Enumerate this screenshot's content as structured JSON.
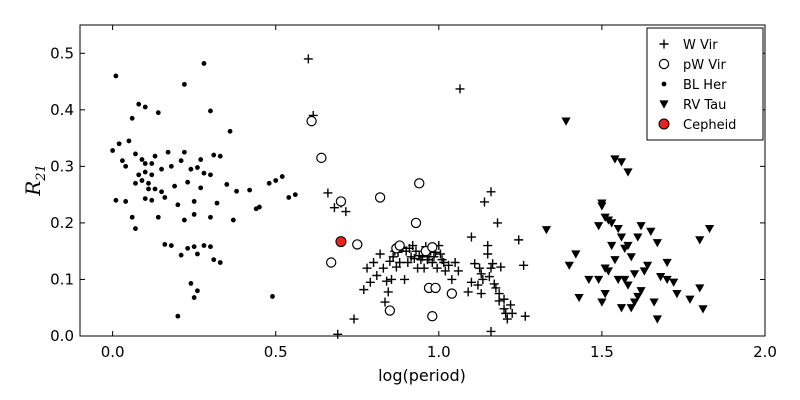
{
  "chart_data": {
    "type": "scatter",
    "xlabel": "log(period)",
    "ylabel": "R",
    "ylabel_sub": "21",
    "xlim": [
      -0.1,
      2.0
    ],
    "ylim": [
      0.0,
      0.55
    ],
    "xticks": [
      0.0,
      0.5,
      1.0,
      1.5,
      2.0
    ],
    "xtick_labels": [
      "0.0",
      "0.5",
      "1.0",
      "1.5",
      "2.0"
    ],
    "yticks": [
      0.0,
      0.1,
      0.2,
      0.3,
      0.4,
      0.5
    ],
    "ytick_labels": [
      "0.0",
      "0.1",
      "0.2",
      "0.3",
      "0.4",
      "0.5"
    ],
    "grid": false,
    "legend_position": "top-right",
    "series": [
      {
        "name": "W Vir",
        "marker": "plus",
        "color": "#000000",
        "points": [
          [
            0.6,
            0.49
          ],
          [
            0.615,
            0.39
          ],
          [
            0.66,
            0.253
          ],
          [
            0.68,
            0.227
          ],
          [
            0.7,
            0.235
          ],
          [
            0.715,
            0.22
          ],
          [
            0.69,
            0.003
          ],
          [
            0.74,
            0.03
          ],
          [
            0.77,
            0.082
          ],
          [
            0.78,
            0.12
          ],
          [
            0.79,
            0.095
          ],
          [
            0.8,
            0.13
          ],
          [
            0.81,
            0.107
          ],
          [
            0.82,
            0.145
          ],
          [
            0.83,
            0.12
          ],
          [
            0.835,
            0.06
          ],
          [
            0.84,
            0.097
          ],
          [
            0.845,
            0.078
          ],
          [
            0.85,
            0.132
          ],
          [
            0.855,
            0.1
          ],
          [
            0.86,
            0.14
          ],
          [
            0.865,
            0.15
          ],
          [
            0.87,
            0.122
          ],
          [
            0.875,
            0.148
          ],
          [
            0.88,
            0.13
          ],
          [
            0.885,
            0.155
          ],
          [
            0.89,
            0.157
          ],
          [
            0.895,
            0.1
          ],
          [
            0.9,
            0.15
          ],
          [
            0.905,
            0.13
          ],
          [
            0.91,
            0.155
          ],
          [
            0.915,
            0.14
          ],
          [
            0.92,
            0.16
          ],
          [
            0.925,
            0.137
          ],
          [
            0.93,
            0.15
          ],
          [
            0.935,
            0.12
          ],
          [
            0.94,
            0.142
          ],
          [
            0.945,
            0.135
          ],
          [
            0.95,
            0.14
          ],
          [
            0.955,
            0.12
          ],
          [
            0.96,
            0.158
          ],
          [
            0.965,
            0.135
          ],
          [
            0.97,
            0.14
          ],
          [
            0.975,
            0.15
          ],
          [
            0.98,
            0.13
          ],
          [
            0.985,
            0.14
          ],
          [
            0.99,
            0.148
          ],
          [
            0.995,
            0.12
          ],
          [
            1.0,
            0.16
          ],
          [
            1.005,
            0.145
          ],
          [
            1.01,
            0.135
          ],
          [
            1.015,
            0.13
          ],
          [
            1.02,
            0.115
          ],
          [
            1.03,
            0.125
          ],
          [
            1.04,
            0.1
          ],
          [
            1.05,
            0.13
          ],
          [
            1.06,
            0.115
          ],
          [
            1.065,
            0.437
          ],
          [
            1.09,
            0.078
          ],
          [
            1.1,
            0.175
          ],
          [
            1.11,
            0.128
          ],
          [
            1.12,
            0.09
          ],
          [
            1.125,
            0.12
          ],
          [
            1.13,
            0.075
          ],
          [
            1.135,
            0.1
          ],
          [
            1.14,
            0.237
          ],
          [
            1.15,
            0.16
          ],
          [
            1.155,
            0.105
          ],
          [
            1.16,
            0.255
          ],
          [
            1.16,
            0.008
          ],
          [
            1.165,
            0.128
          ],
          [
            1.17,
            0.092
          ],
          [
            1.175,
            0.085
          ],
          [
            1.18,
            0.2
          ],
          [
            1.185,
            0.075
          ],
          [
            1.19,
            0.122
          ],
          [
            1.2,
            0.065
          ],
          [
            1.205,
            0.04
          ],
          [
            1.21,
            0.03
          ],
          [
            1.22,
            0.055
          ],
          [
            1.225,
            0.04
          ],
          [
            1.245,
            0.17
          ],
          [
            1.26,
            0.125
          ],
          [
            1.265,
            0.035
          ],
          [
            1.15,
            0.145
          ],
          [
            1.16,
            0.12
          ],
          [
            1.185,
            0.062
          ],
          [
            1.2,
            0.048
          ],
          [
            1.13,
            0.11
          ],
          [
            1.1,
            0.095
          ]
        ]
      },
      {
        "name": "pW Vir",
        "marker": "circle-open",
        "color": "#000000",
        "points": [
          [
            0.61,
            0.38
          ],
          [
            0.64,
            0.315
          ],
          [
            0.7,
            0.238
          ],
          [
            0.82,
            0.245
          ],
          [
            0.94,
            0.27
          ],
          [
            0.67,
            0.13
          ],
          [
            0.75,
            0.162
          ],
          [
            0.87,
            0.155
          ],
          [
            0.88,
            0.16
          ],
          [
            0.93,
            0.2
          ],
          [
            0.96,
            0.15
          ],
          [
            0.98,
            0.157
          ],
          [
            0.97,
            0.085
          ],
          [
            0.99,
            0.085
          ],
          [
            1.04,
            0.075
          ],
          [
            0.85,
            0.045
          ],
          [
            0.98,
            0.035
          ]
        ]
      },
      {
        "name": "BL Her",
        "marker": "dot",
        "color": "#000000",
        "points": [
          [
            0.01,
            0.46
          ],
          [
            0.08,
            0.41
          ],
          [
            0.1,
            0.405
          ],
          [
            0.22,
            0.445
          ],
          [
            0.28,
            0.482
          ],
          [
            0.06,
            0.385
          ],
          [
            0.14,
            0.395
          ],
          [
            0.3,
            0.398
          ],
          [
            0.36,
            0.362
          ],
          [
            0.0,
            0.328
          ],
          [
            0.02,
            0.34
          ],
          [
            0.05,
            0.345
          ],
          [
            0.07,
            0.322
          ],
          [
            0.09,
            0.312
          ],
          [
            0.1,
            0.305
          ],
          [
            0.12,
            0.305
          ],
          [
            0.13,
            0.318
          ],
          [
            0.17,
            0.325
          ],
          [
            0.21,
            0.31
          ],
          [
            0.22,
            0.325
          ],
          [
            0.27,
            0.312
          ],
          [
            0.31,
            0.32
          ],
          [
            0.33,
            0.318
          ],
          [
            0.03,
            0.31
          ],
          [
            0.04,
            0.3
          ],
          [
            0.08,
            0.285
          ],
          [
            0.1,
            0.29
          ],
          [
            0.11,
            0.27
          ],
          [
            0.12,
            0.285
          ],
          [
            0.15,
            0.295
          ],
          [
            0.18,
            0.3
          ],
          [
            0.24,
            0.295
          ],
          [
            0.26,
            0.298
          ],
          [
            0.28,
            0.288
          ],
          [
            0.3,
            0.285
          ],
          [
            0.07,
            0.27
          ],
          [
            0.09,
            0.275
          ],
          [
            0.11,
            0.26
          ],
          [
            0.13,
            0.26
          ],
          [
            0.15,
            0.255
          ],
          [
            0.16,
            0.245
          ],
          [
            0.19,
            0.265
          ],
          [
            0.23,
            0.272
          ],
          [
            0.27,
            0.262
          ],
          [
            0.35,
            0.268
          ],
          [
            0.01,
            0.24
          ],
          [
            0.04,
            0.238
          ],
          [
            0.1,
            0.243
          ],
          [
            0.12,
            0.24
          ],
          [
            0.2,
            0.232
          ],
          [
            0.25,
            0.238
          ],
          [
            0.32,
            0.235
          ],
          [
            0.38,
            0.256
          ],
          [
            0.42,
            0.258
          ],
          [
            0.44,
            0.225
          ],
          [
            0.45,
            0.228
          ],
          [
            0.48,
            0.27
          ],
          [
            0.5,
            0.275
          ],
          [
            0.52,
            0.282
          ],
          [
            0.54,
            0.245
          ],
          [
            0.56,
            0.25
          ],
          [
            0.37,
            0.205
          ],
          [
            0.14,
            0.21
          ],
          [
            0.06,
            0.21
          ],
          [
            0.07,
            0.19
          ],
          [
            0.22,
            0.205
          ],
          [
            0.25,
            0.215
          ],
          [
            0.3,
            0.21
          ],
          [
            0.16,
            0.162
          ],
          [
            0.18,
            0.16
          ],
          [
            0.23,
            0.155
          ],
          [
            0.25,
            0.158
          ],
          [
            0.28,
            0.16
          ],
          [
            0.3,
            0.158
          ],
          [
            0.21,
            0.143
          ],
          [
            0.26,
            0.145
          ],
          [
            0.31,
            0.135
          ],
          [
            0.33,
            0.13
          ],
          [
            0.24,
            0.093
          ],
          [
            0.26,
            0.08
          ],
          [
            0.25,
            0.068
          ],
          [
            0.2,
            0.035
          ],
          [
            0.49,
            0.07
          ]
        ]
      },
      {
        "name": "RV Tau",
        "marker": "triangle-down",
        "color": "#000000",
        "points": [
          [
            1.39,
            0.38
          ],
          [
            1.33,
            0.188
          ],
          [
            1.4,
            0.125
          ],
          [
            1.42,
            0.145
          ],
          [
            1.46,
            0.1
          ],
          [
            1.43,
            0.068
          ],
          [
            1.49,
            0.195
          ],
          [
            1.5,
            0.235
          ],
          [
            1.5,
            0.23
          ],
          [
            1.51,
            0.21
          ],
          [
            1.52,
            0.205
          ],
          [
            1.53,
            0.16
          ],
          [
            1.54,
            0.313
          ],
          [
            1.56,
            0.308
          ],
          [
            1.58,
            0.29
          ],
          [
            1.53,
            0.2
          ],
          [
            1.55,
            0.19
          ],
          [
            1.56,
            0.175
          ],
          [
            1.57,
            0.155
          ],
          [
            1.58,
            0.16
          ],
          [
            1.59,
            0.14
          ],
          [
            1.51,
            0.12
          ],
          [
            1.52,
            0.115
          ],
          [
            1.54,
            0.135
          ],
          [
            1.55,
            0.1
          ],
          [
            1.49,
            0.1
          ],
          [
            1.51,
            0.075
          ],
          [
            1.5,
            0.06
          ],
          [
            1.57,
            0.1
          ],
          [
            1.58,
            0.09
          ],
          [
            1.6,
            0.11
          ],
          [
            1.61,
            0.175
          ],
          [
            1.62,
            0.195
          ],
          [
            1.63,
            0.115
          ],
          [
            1.64,
            0.125
          ],
          [
            1.62,
            0.08
          ],
          [
            1.6,
            0.06
          ],
          [
            1.61,
            0.07
          ],
          [
            1.65,
            0.185
          ],
          [
            1.67,
            0.165
          ],
          [
            1.7,
            0.13
          ],
          [
            1.68,
            0.105
          ],
          [
            1.7,
            0.1
          ],
          [
            1.66,
            0.06
          ],
          [
            1.72,
            0.095
          ],
          [
            1.73,
            0.075
          ],
          [
            1.77,
            0.065
          ],
          [
            1.8,
            0.085
          ],
          [
            1.81,
            0.048
          ],
          [
            1.83,
            0.19
          ],
          [
            1.8,
            0.17
          ],
          [
            1.67,
            0.03
          ],
          [
            1.56,
            0.05
          ],
          [
            1.59,
            0.05
          ]
        ]
      },
      {
        "name": "Cepheid",
        "marker": "circle-filled",
        "color": "#e8231f",
        "points": [
          [
            0.7,
            0.167
          ]
        ]
      }
    ]
  }
}
